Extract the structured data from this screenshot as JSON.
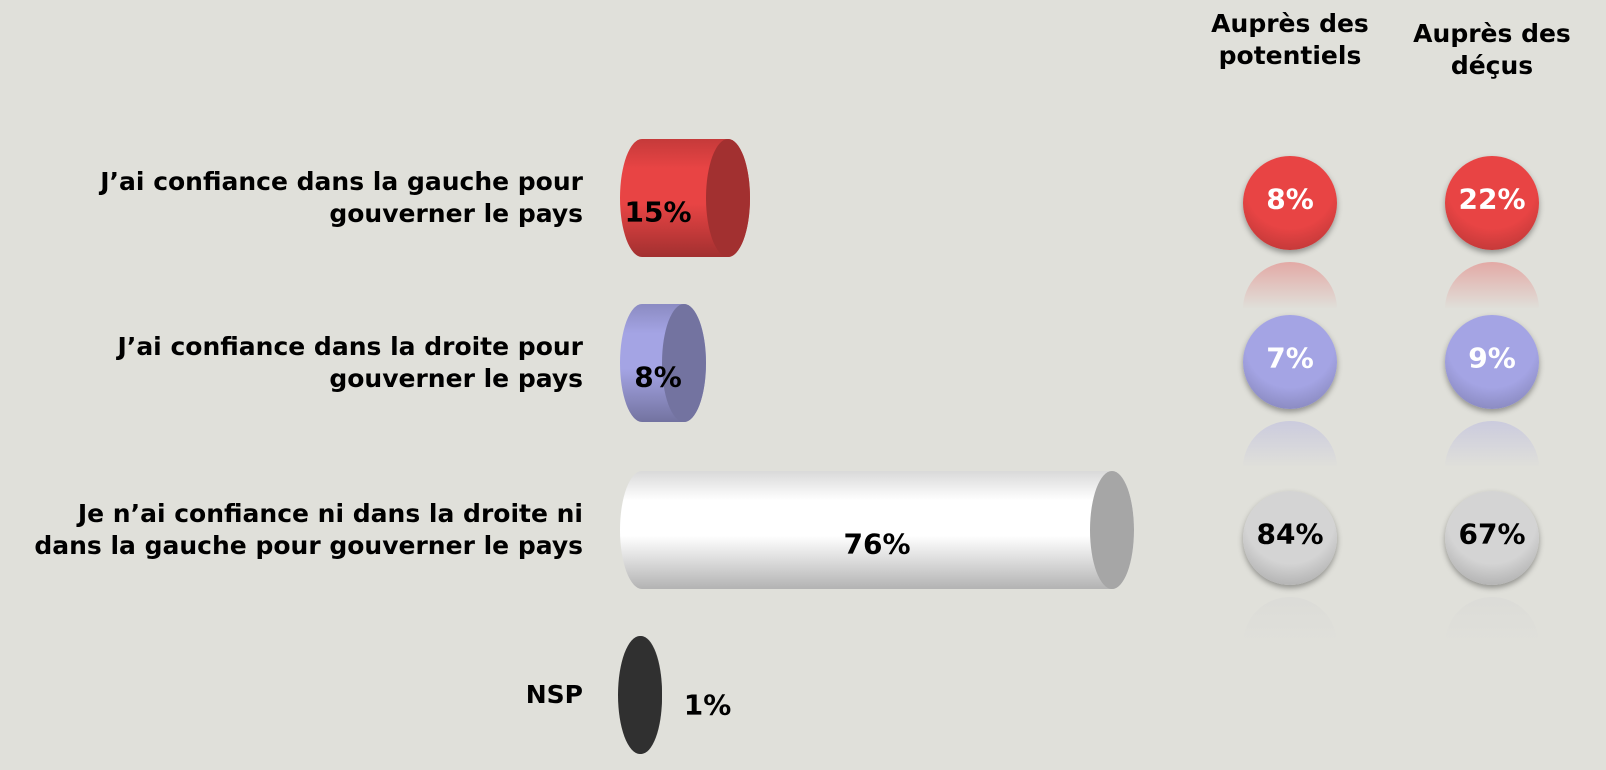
{
  "chart_data": {
    "type": "bar",
    "categories": [
      "J’ai confiance dans la gauche pour gouverner le pays",
      "J’ai confiance dans la droite pour gouverner le pays",
      "Je n’ai confiance ni dans la droite ni dans la gauche pour gouverner le pays",
      "NSP"
    ],
    "values": [
      15,
      8,
      76,
      1
    ],
    "value_labels": [
      "15%",
      "8%",
      "76%",
      "1%"
    ],
    "colors": [
      "#e84444",
      "#a4a4e4",
      "#ffffff",
      "#444444"
    ],
    "panels": [
      {
        "title": "Auprès des potentiels",
        "values": [
          8,
          7,
          84
        ],
        "value_labels": [
          "8%",
          "7%",
          "84%"
        ]
      },
      {
        "title": "Auprès des déçus",
        "values": [
          22,
          9,
          67
        ],
        "value_labels": [
          "22%",
          "9%",
          "67%"
        ]
      }
    ]
  }
}
